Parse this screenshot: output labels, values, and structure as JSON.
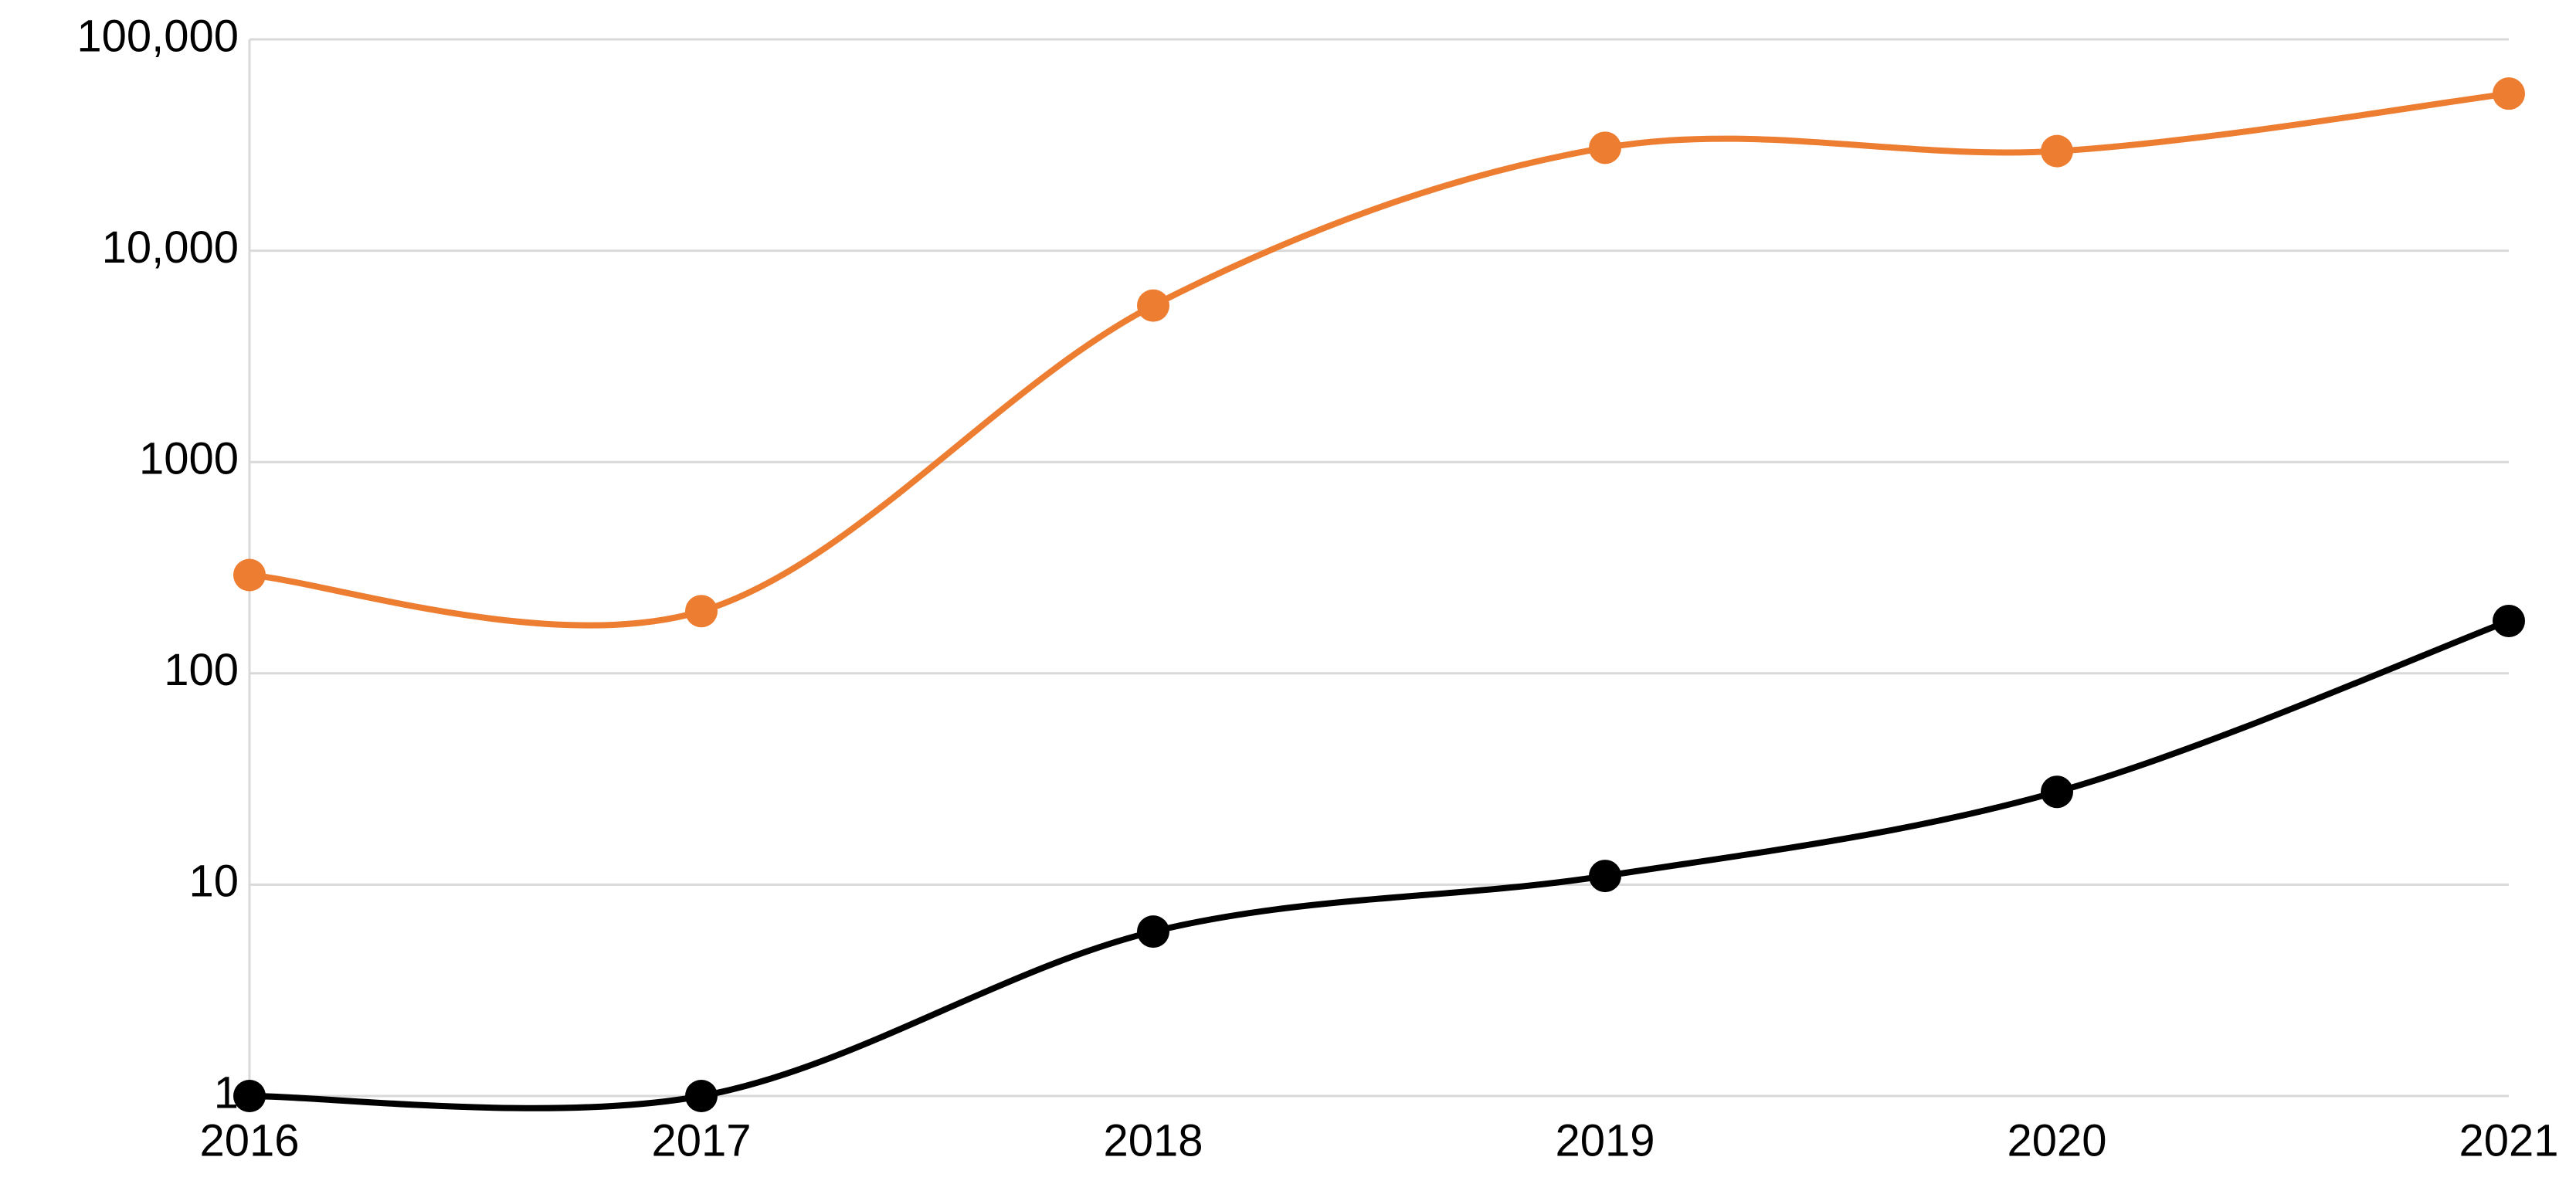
{
  "chart_data": {
    "type": "line",
    "x": [
      2016,
      2017,
      2018,
      2019,
      2020,
      2021
    ],
    "xlim": [
      2016,
      2021
    ],
    "xticks": [
      2016,
      2017,
      2018,
      2019,
      2020,
      2021
    ],
    "ylim": [
      1,
      100000
    ],
    "yticks": [
      1,
      10,
      100,
      1000,
      {
        "value": 10000,
        "label": "10,000"
      },
      {
        "value": 100000,
        "label": "100,000"
      }
    ],
    "log_y": true,
    "grid": true,
    "smooth": true,
    "series": [
      {
        "color": "#ed7d31",
        "values": [
          292,
          197,
          5500,
          30700,
          29600,
          55400
        ]
      },
      {
        "color": "#000000",
        "values": [
          1,
          1,
          6,
          11,
          27.5,
          177
        ]
      }
    ]
  }
}
